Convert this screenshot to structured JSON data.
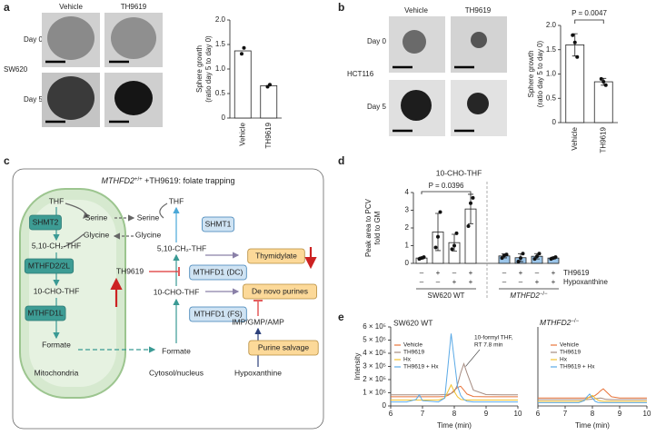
{
  "panels": {
    "a": {
      "label": "a",
      "columns": [
        "Vehicle",
        "TH9619"
      ],
      "rows": [
        "Day 0",
        "Day 5"
      ],
      "cell_line": "SW620"
    },
    "b": {
      "label": "b",
      "columns": [
        "Vehicle",
        "TH9619"
      ],
      "rows": [
        "Day 0",
        "Day 5"
      ],
      "cell_line": "HCT116"
    },
    "c": {
      "label": "c",
      "title": {
        "gene": "MTHFD2",
        "superscript": "+/+",
        "text": " +TH9619: folate trapping"
      }
    },
    "d": {
      "label": "d"
    },
    "e": {
      "label": "e"
    }
  },
  "diagram": {
    "nodes": [
      {
        "label": "THF"
      },
      {
        "label": "SHMT2"
      },
      {
        "label": "Serine"
      },
      {
        "label": "Glycine"
      },
      {
        "label": "5,10-CH₂-THF"
      },
      {
        "label": "MTHFD2/2L"
      },
      {
        "label": "10-CHO-THF"
      },
      {
        "label": "MTHFD1L"
      },
      {
        "label": "Formate"
      },
      {
        "label": "Mitochondria"
      },
      {
        "label": "Serine"
      },
      {
        "label": "Glycine"
      },
      {
        "label": "THF"
      },
      {
        "label": "SHMT1"
      },
      {
        "label": "5,10-CH₂-THF"
      },
      {
        "label": "TH9619"
      },
      {
        "label": "MTHFD1 (DC)"
      },
      {
        "label": "10-CHO-THF"
      },
      {
        "label": "MTHFD1 (FS)"
      },
      {
        "label": "Formate"
      },
      {
        "label": "Cytosol/nucleus"
      },
      {
        "label": "Thymidylate"
      },
      {
        "label": "De novo purines"
      },
      {
        "label": "IMP/GMP/AMP"
      },
      {
        "label": "Purine salvage"
      },
      {
        "label": "Hypoxanthine"
      }
    ]
  },
  "chart_data": [
    {
      "type": "bar",
      "y_label": [
        "Sphere growth",
        "(ratio day 5 to day 0)"
      ],
      "categories": [
        "Vehicle",
        "TH9619"
      ],
      "values": [
        1.37,
        0.66
      ],
      "points": [
        [
          1.31,
          1.43
        ],
        [
          0.64,
          0.68
        ]
      ],
      "color": "#ffffff",
      "ylim": [
        0,
        2
      ],
      "yticks": [
        0,
        0.5,
        {
          "value": 1,
          "label": "1.0"
        },
        1.5,
        {
          "value": 2,
          "label": "2.0"
        }
      ]
    },
    {
      "type": "bar",
      "y_label": [
        "Sphere growth",
        "(ratio day 5 to day 0)"
      ],
      "categories": [
        "Vehicle",
        "TH9619"
      ],
      "values": [
        1.6,
        0.84
      ],
      "errors": [
        0.23,
        0.07
      ],
      "points": [
        [
          1.8,
          1.65,
          1.35
        ],
        [
          0.9,
          0.84,
          0.77
        ]
      ],
      "color": "#ffffff",
      "annotation": "P = 0.0047",
      "ylim": [
        0,
        2
      ],
      "yticks": [
        0,
        0.5,
        {
          "value": 1,
          "label": "1.0"
        },
        1.5,
        {
          "value": 2,
          "label": "2.0"
        }
      ]
    },
    {
      "type": "bar",
      "title": "10-CHO-THF",
      "y_label": [
        "Peak area to PCV",
        "fold to GM"
      ],
      "values": [
        0.3,
        1.77,
        1.17,
        3.07,
        0.42,
        0.32,
        0.4,
        0.3
      ],
      "errors": [
        0.05,
        1.05,
        0.47,
        0.83,
        0.11,
        0.22,
        0.15,
        0.05
      ],
      "points": [
        [
          0.25,
          0.3,
          0.35
        ],
        [
          0.9,
          1.5,
          2.9
        ],
        [
          0.8,
          1.0,
          1.7
        ],
        [
          2.1,
          3.4,
          3.7
        ],
        [
          0.3,
          0.45,
          0.5
        ],
        [
          0.1,
          0.3,
          0.55
        ],
        [
          0.25,
          0.4,
          0.55
        ],
        [
          0.25,
          0.3,
          0.35
        ]
      ],
      "colors": [
        "#ffffff",
        "#ffffff",
        "#ffffff",
        "#ffffff",
        "#9cc6ea",
        "#9cc6ea",
        "#9cc6ea",
        "#9cc6ea"
      ],
      "rows": [
        {
          "name": "TH9619",
          "signs": [
            "–",
            "+",
            "–",
            "+",
            "–",
            "+",
            "–",
            "+"
          ]
        },
        {
          "name": "Hypoxanthine",
          "signs": [
            "–",
            "–",
            "+",
            "+",
            "–",
            "–",
            "+",
            "+"
          ]
        }
      ],
      "groups": [
        {
          "label": "SW620 WT"
        },
        {
          "gene": "MTHFD2",
          "superscript": "−/−"
        }
      ],
      "annotation": "P = 0.0396",
      "ylim": [
        0,
        4
      ],
      "yticks": [
        0,
        1,
        2,
        3,
        4
      ]
    },
    {
      "type": "line",
      "title": "SW620 WT",
      "y_label": "Intensity",
      "x_label": "Time (min)",
      "annotation": [
        "10-formyl THF,",
        "RT 7.8 min"
      ],
      "x": [
        6,
        6.5,
        6.8,
        6.9,
        7.0,
        7.5,
        7.7,
        7.8,
        7.9,
        8.0,
        8.1,
        8.2,
        8.3,
        8.4,
        8.6,
        9,
        9.5,
        10
      ],
      "series": [
        {
          "name": "Vehicle",
          "color": "#e8743b",
          "values": [
            70000,
            70000,
            70000,
            70000,
            70000,
            70000,
            72000,
            80000,
            95000,
            120000,
            140000,
            150000,
            120000,
            90000,
            72000,
            70000,
            70000,
            70000
          ]
        },
        {
          "name": "TH9619",
          "color": "#a58b80",
          "values": [
            85000,
            85000,
            85000,
            85000,
            85000,
            85000,
            86000,
            88000,
            95000,
            110000,
            160000,
            250000,
            320000,
            250000,
            120000,
            86000,
            85000,
            85000
          ]
        },
        {
          "name": "Hx",
          "color": "#f2c12e",
          "values": [
            45000,
            45000,
            45000,
            45000,
            45000,
            45000,
            60000,
            110000,
            160000,
            110000,
            70000,
            50000,
            46000,
            45000,
            45000,
            45000,
            45000,
            45000
          ]
        },
        {
          "name": "TH9619 + Hx",
          "color": "#5aa9e6",
          "values": [
            30000,
            30000,
            50000,
            85000,
            40000,
            30000,
            60000,
            300000,
            550000,
            350000,
            150000,
            80000,
            50000,
            35000,
            30000,
            30000,
            30000,
            30000
          ]
        }
      ],
      "xlim": [
        6,
        10
      ],
      "xticks": [
        6,
        7,
        8,
        9,
        10
      ],
      "ylim": [
        0,
        600000
      ],
      "yticks": [
        0,
        {
          "value": 100000,
          "label": "1 × 10⁵"
        },
        {
          "value": 200000,
          "label": "2 × 10⁵"
        },
        {
          "value": 300000,
          "label": "3 × 10⁵"
        },
        {
          "value": 400000,
          "label": "4 × 10⁵"
        },
        {
          "value": 500000,
          "label": "5 × 10⁵"
        },
        {
          "value": 600000,
          "label": "6 × 10⁵"
        }
      ]
    },
    {
      "type": "line",
      "title": {
        "gene": "MTHFD2",
        "superscript": "−/−"
      },
      "x_label": "Time (min)",
      "x": [
        6,
        6.5,
        7.0,
        7.5,
        7.7,
        7.8,
        7.9,
        8.0,
        8.1,
        8.2,
        8.3,
        8.4,
        8.5,
        8.7,
        9,
        9.5,
        10
      ],
      "series": [
        {
          "name": "Vehicle",
          "color": "#e8743b",
          "values": [
            60000,
            60000,
            60000,
            60000,
            60000,
            62000,
            65000,
            70000,
            80000,
            95000,
            115000,
            130000,
            110000,
            70000,
            60000,
            60000,
            60000
          ]
        },
        {
          "name": "TH9619",
          "color": "#a58b80",
          "values": [
            48000,
            48000,
            48000,
            48000,
            48000,
            48000,
            50000,
            52000,
            55000,
            58000,
            60000,
            55000,
            50000,
            48000,
            48000,
            48000,
            48000
          ]
        },
        {
          "name": "Hx",
          "color": "#f2c12e",
          "values": [
            35000,
            35000,
            35000,
            35000,
            40000,
            55000,
            70000,
            80000,
            60000,
            45000,
            38000,
            35000,
            35000,
            35000,
            35000,
            35000,
            35000
          ]
        },
        {
          "name": "TH9619 + Hx",
          "color": "#5aa9e6",
          "values": [
            25000,
            25000,
            25000,
            25000,
            40000,
            70000,
            90000,
            60000,
            35000,
            27000,
            25000,
            25000,
            25000,
            25000,
            25000,
            25000,
            25000
          ]
        }
      ],
      "xlim": [
        6,
        10
      ],
      "xticks": [
        6,
        7,
        8,
        9,
        10
      ],
      "ylim": [
        0,
        600000
      ]
    }
  ]
}
